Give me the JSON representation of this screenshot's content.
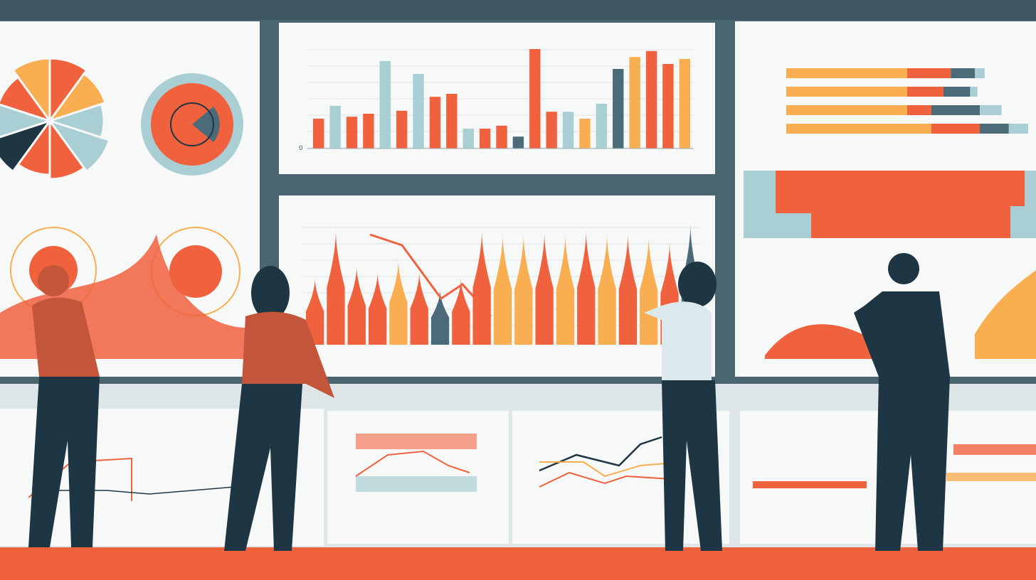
{
  "palette": {
    "background": "#4b6570",
    "panel": "#f7f9f9",
    "red": "#f0623e",
    "orange": "#f9ae52",
    "teal": "#a9cfd4",
    "slate": "#4b6b78",
    "navy": "#1e3544",
    "floor": "#f0623e"
  },
  "top_chart": {
    "axis_zero": "0",
    "bars": [
      {
        "v": 30,
        "c": "red"
      },
      {
        "v": 43,
        "c": "teal"
      },
      {
        "v": 32,
        "c": "red"
      },
      {
        "v": 35,
        "c": "red"
      },
      {
        "v": 88,
        "c": "teal"
      },
      {
        "v": 38,
        "c": "red"
      },
      {
        "v": 75,
        "c": "teal"
      },
      {
        "v": 52,
        "c": "red"
      },
      {
        "v": 55,
        "c": "red"
      },
      {
        "v": 20,
        "c": "teal"
      },
      {
        "v": 20,
        "c": "red"
      },
      {
        "v": 23,
        "c": "red"
      },
      {
        "v": 12,
        "c": "slate"
      },
      {
        "v": 100,
        "c": "red"
      },
      {
        "v": 37,
        "c": "red"
      },
      {
        "v": 37,
        "c": "teal"
      },
      {
        "v": 30,
        "c": "orange"
      },
      {
        "v": 45,
        "c": "teal"
      },
      {
        "v": 80,
        "c": "slate"
      },
      {
        "v": 92,
        "c": "orange"
      },
      {
        "v": 98,
        "c": "red"
      },
      {
        "v": 85,
        "c": "red"
      },
      {
        "v": 90,
        "c": "orange"
      }
    ]
  },
  "mid_chart": {
    "peaks": [
      {
        "v": 55,
        "c": "red"
      },
      {
        "v": 95,
        "c": "red"
      },
      {
        "v": 65,
        "c": "red"
      },
      {
        "v": 60,
        "c": "red"
      },
      {
        "v": 70,
        "c": "orange"
      },
      {
        "v": 60,
        "c": "red"
      },
      {
        "v": 45,
        "c": "slate"
      },
      {
        "v": 55,
        "c": "red"
      },
      {
        "v": 95,
        "c": "red"
      },
      {
        "v": 92,
        "c": "orange"
      },
      {
        "v": 92,
        "c": "orange"
      },
      {
        "v": 93,
        "c": "red"
      },
      {
        "v": 92,
        "c": "orange"
      },
      {
        "v": 95,
        "c": "red"
      },
      {
        "v": 92,
        "c": "orange"
      },
      {
        "v": 92,
        "c": "red"
      },
      {
        "v": 90,
        "c": "orange"
      },
      {
        "v": 85,
        "c": "red"
      },
      {
        "v": 100,
        "c": "slate"
      }
    ]
  },
  "right_bars": [
    [
      0.5,
      0.18,
      0.1,
      0.04
    ],
    [
      0.5,
      0.15,
      0.11,
      0.03
    ],
    [
      0.5,
      0.1,
      0.2,
      0.09
    ],
    [
      0.6,
      0.2,
      0.12,
      0.08
    ]
  ],
  "pie_slices": [
    "red",
    "orange",
    "teal",
    "teal",
    "red",
    "red",
    "navy",
    "teal",
    "red",
    "orange"
  ]
}
